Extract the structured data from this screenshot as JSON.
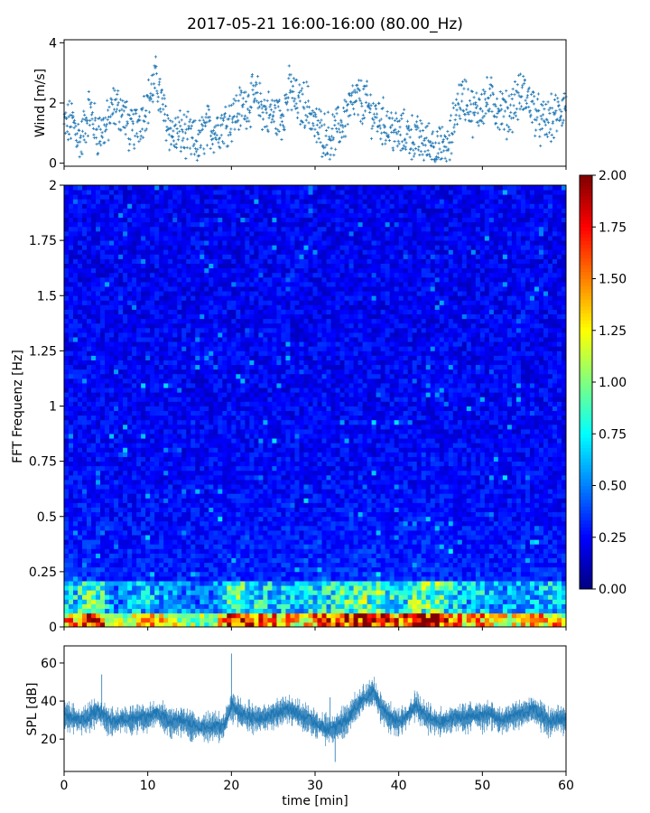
{
  "figure": {
    "title": "2017-05-21 16:00-16:00 (80.00_Hz)"
  },
  "colors": {
    "wind_points": "#1f77b4",
    "spl_line": "#1f77b4",
    "colormap": "jet"
  },
  "chart_data": [
    {
      "type": "scatter",
      "name": "wind",
      "ylabel": "Wind [m/s]",
      "xlim": [
        0,
        60
      ],
      "ylim": [
        -0.1,
        4.1
      ],
      "yticks": [
        0,
        2,
        4
      ],
      "ytick_labels": [
        "0",
        "2",
        "4"
      ],
      "x_tick_labels_shown": false,
      "marker": "+",
      "trend": {
        "x": [
          0,
          1,
          2,
          3,
          4,
          5,
          6,
          7,
          8,
          9,
          10,
          11,
          12,
          13,
          14,
          15,
          16,
          17,
          18,
          19,
          20,
          21,
          22,
          23,
          24,
          25,
          26,
          27,
          28,
          29,
          30,
          31,
          32,
          33,
          34,
          35,
          36,
          37,
          38,
          39,
          40,
          41,
          42,
          43,
          44,
          45,
          46,
          47,
          48,
          49,
          50,
          51,
          52,
          53,
          54,
          55,
          56,
          57,
          58,
          59,
          60
        ],
        "y": [
          1.2,
          1.4,
          0.7,
          1.8,
          1.0,
          1.2,
          1.9,
          1.7,
          1.0,
          1.4,
          2.0,
          2.8,
          1.6,
          0.9,
          1.0,
          0.8,
          0.6,
          1.2,
          1.1,
          1.3,
          1.5,
          1.8,
          2.0,
          2.2,
          1.7,
          1.6,
          1.5,
          2.5,
          1.9,
          2.0,
          1.2,
          1.0,
          0.9,
          1.2,
          1.8,
          2.1,
          2.0,
          1.6,
          1.4,
          1.2,
          0.9,
          1.0,
          0.8,
          0.7,
          0.6,
          0.4,
          0.5,
          2.0,
          2.2,
          1.6,
          2.0,
          2.1,
          1.8,
          1.6,
          2.1,
          2.3,
          1.9,
          1.3,
          1.4,
          1.6,
          2.0
        ]
      },
      "samples_per_minute": 60
    },
    {
      "type": "heatmap",
      "name": "spectrogram",
      "ylabel": "FFT Frequenz [Hz]",
      "xlim": [
        0,
        60
      ],
      "ylim": [
        0,
        2
      ],
      "yticks": [
        0,
        0.25,
        0.5,
        0.75,
        1,
        1.25,
        1.5,
        1.75,
        2
      ],
      "ytick_labels": [
        "0",
        "0.25",
        "0.5",
        "0.75",
        "1",
        "1.25",
        "1.5",
        "1.75",
        "2"
      ],
      "x_tick_labels_shown": false,
      "colorscale": {
        "min": 0,
        "max": 2,
        "ticks": [
          0,
          0.25,
          0.5,
          0.75,
          1,
          1.25,
          1.5,
          1.75,
          2
        ],
        "tick_labels": [
          "0.00",
          "0.25",
          "0.50",
          "0.75",
          "1.00",
          "1.25",
          "1.50",
          "1.75",
          "2.00"
        ]
      },
      "low_freq_profile": {
        "x": [
          0,
          2,
          4,
          6,
          8,
          10,
          12,
          14,
          16,
          18,
          20,
          22,
          24,
          26,
          28,
          30,
          32,
          34,
          36,
          38,
          40,
          42,
          44,
          46,
          48,
          50,
          52,
          54,
          56,
          58,
          60
        ],
        "value": [
          1.3,
          1.6,
          1.8,
          1.0,
          1.2,
          1.4,
          1.2,
          1.1,
          1.0,
          1.0,
          1.9,
          1.6,
          1.5,
          1.4,
          1.3,
          1.5,
          1.6,
          1.7,
          1.9,
          1.8,
          1.5,
          1.8,
          1.9,
          1.6,
          1.3,
          1.4,
          1.2,
          1.2,
          1.3,
          1.4,
          1.2
        ]
      }
    },
    {
      "type": "line",
      "name": "spl",
      "ylabel": "SPL [dB]",
      "xlabel": "time [min]",
      "xlim": [
        0,
        60
      ],
      "ylim": [
        3,
        69
      ],
      "xticks": [
        0,
        10,
        20,
        30,
        40,
        50,
        60
      ],
      "xtick_labels": [
        "0",
        "10",
        "20",
        "30",
        "40",
        "50",
        "60"
      ],
      "yticks": [
        20,
        40,
        60
      ],
      "ytick_labels": [
        "20",
        "40",
        "60"
      ],
      "x": [
        0,
        1,
        2,
        3,
        4,
        5,
        6,
        7,
        8,
        9,
        10,
        11,
        12,
        13,
        14,
        15,
        16,
        17,
        18,
        19,
        20,
        21,
        22,
        23,
        24,
        25,
        26,
        27,
        28,
        29,
        30,
        31,
        32,
        33,
        34,
        35,
        36,
        37,
        38,
        39,
        40,
        41,
        42,
        43,
        44,
        45,
        46,
        47,
        48,
        49,
        50,
        51,
        52,
        53,
        54,
        55,
        56,
        57,
        58,
        59,
        60
      ],
      "y": [
        33,
        31,
        30,
        32,
        35,
        31,
        29,
        31,
        30,
        32,
        31,
        34,
        31,
        29,
        30,
        28,
        27,
        26,
        27,
        26,
        38,
        34,
        32,
        31,
        32,
        33,
        35,
        36,
        33,
        31,
        29,
        26,
        25,
        28,
        31,
        38,
        42,
        45,
        36,
        31,
        29,
        32,
        38,
        33,
        30,
        29,
        30,
        32,
        31,
        33,
        32,
        34,
        30,
        31,
        33,
        34,
        36,
        33,
        29,
        31,
        30
      ],
      "band_halfwidth_db": 6,
      "spikes": [
        {
          "x": 4.5,
          "y": 54
        },
        {
          "x": 20.0,
          "y": 65
        },
        {
          "x": 31.8,
          "y": 42
        },
        {
          "x": 32.4,
          "y": 8
        },
        {
          "x": 36.8,
          "y": 48
        },
        {
          "x": 42.2,
          "y": 45
        }
      ]
    }
  ]
}
